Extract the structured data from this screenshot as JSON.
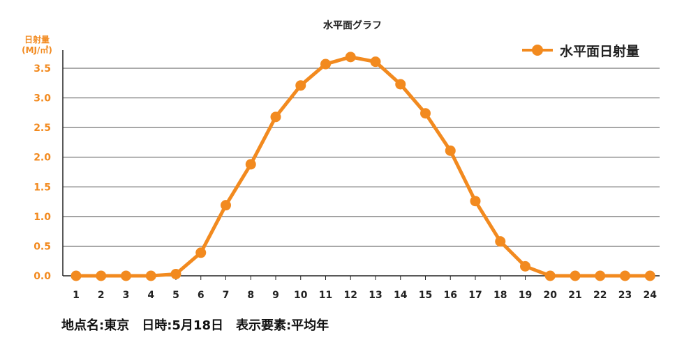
{
  "chart_data": {
    "type": "line",
    "title": "水平面グラフ",
    "ylabel_line1": "日射量",
    "ylabel_line2": "(MJ/㎡)",
    "xlabel": "",
    "categories": [
      "1",
      "2",
      "3",
      "4",
      "5",
      "6",
      "7",
      "8",
      "9",
      "10",
      "11",
      "12",
      "13",
      "14",
      "15",
      "16",
      "17",
      "18",
      "19",
      "20",
      "21",
      "22",
      "23",
      "24"
    ],
    "series": [
      {
        "name": "水平面日射量",
        "values": [
          0.0,
          0.0,
          0.0,
          0.0,
          0.03,
          0.39,
          1.19,
          1.88,
          2.68,
          3.21,
          3.57,
          3.69,
          3.61,
          3.23,
          2.74,
          2.11,
          1.26,
          0.58,
          0.16,
          0.0,
          0.0,
          0.0,
          0.0,
          0.0
        ]
      }
    ],
    "ylim": [
      0,
      3.5
    ],
    "yticks": [
      "0.0",
      "0.5",
      "1.0",
      "1.5",
      "2.0",
      "2.5",
      "3.0",
      "3.5"
    ],
    "grid": true,
    "legend_position": "top-right",
    "colors": {
      "series": "#f28a1f",
      "axis_label": "#f28a1f",
      "grid": "#555555"
    }
  },
  "footer": {
    "location": "地点名:東京",
    "datetime": "日時:5月18日",
    "element": "表示要素:平均年"
  }
}
